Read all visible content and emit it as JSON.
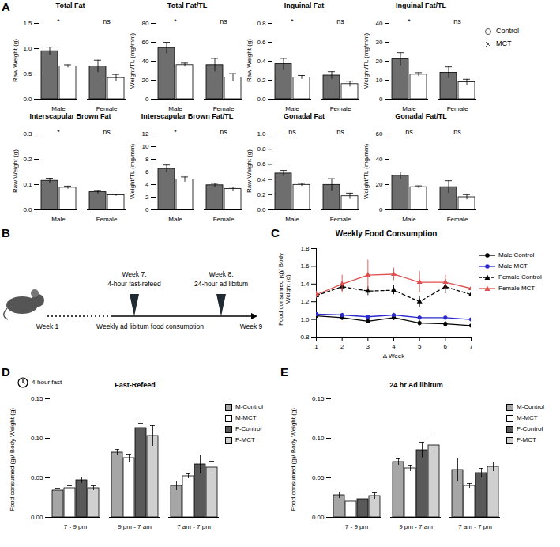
{
  "panel_labels": [
    "A",
    "B",
    "C",
    "D",
    "E"
  ],
  "chart_data": [
    {
      "type": "bar",
      "title": "Total Fat",
      "ylabel": "Raw Weight (g)",
      "categories": [
        "Male",
        "Female"
      ],
      "series": [
        {
          "name": "Control",
          "color": "#6e6e6e",
          "marker": "circle",
          "values": [
            0.95,
            0.65
          ],
          "errors": [
            0.08,
            0.12
          ]
        },
        {
          "name": "MCT",
          "color": "#ffffff",
          "marker": "x",
          "values": [
            0.65,
            0.42
          ],
          "errors": [
            0.03,
            0.07
          ]
        }
      ],
      "annotations": [
        "*",
        "ns"
      ],
      "ylim": [
        0,
        1.5
      ],
      "yticks": [
        {
          "value": 0,
          "label": "0.0"
        },
        0.5,
        {
          "value": 1,
          "label": "1.0"
        },
        1.5
      ],
      "legend": "right"
    },
    {
      "type": "bar",
      "title": "Total Fat/TL",
      "ylabel": "Weight/TL (mg/mm)",
      "categories": [
        "Male",
        "Female"
      ],
      "series": [
        {
          "name": "Control",
          "color": "#6e6e6e",
          "values": [
            54,
            36
          ],
          "errors": [
            6,
            7
          ]
        },
        {
          "name": "MCT",
          "color": "#ffffff",
          "values": [
            36,
            23
          ],
          "errors": [
            2,
            4
          ]
        }
      ],
      "annotations": [
        "*",
        "ns"
      ],
      "ylim": [
        0,
        80
      ],
      "yticks": [
        0,
        20,
        40,
        60,
        80
      ]
    },
    {
      "type": "bar",
      "title": "Inguinal Fat",
      "ylabel": "Raw Weight (g)",
      "categories": [
        "Male",
        "Female"
      ],
      "series": [
        {
          "name": "Control",
          "color": "#6e6e6e",
          "values": [
            0.37,
            0.25
          ],
          "errors": [
            0.06,
            0.04
          ]
        },
        {
          "name": "MCT",
          "color": "#ffffff",
          "values": [
            0.23,
            0.16
          ],
          "errors": [
            0.02,
            0.03
          ]
        }
      ],
      "annotations": [
        "*",
        "ns"
      ],
      "ylim": [
        0,
        0.8
      ],
      "yticks": [
        {
          "value": 0,
          "label": "0.0"
        },
        0.2,
        0.4,
        0.6,
        0.8
      ]
    },
    {
      "type": "bar",
      "title": "Inguinal Fat/TL",
      "ylabel": "Weight/TL (mg/mm)",
      "categories": [
        "Male",
        "Female"
      ],
      "series": [
        {
          "name": "Control",
          "color": "#6e6e6e",
          "values": [
            21,
            14
          ],
          "errors": [
            3.5,
            3
          ]
        },
        {
          "name": "MCT",
          "color": "#ffffff",
          "values": [
            13,
            9
          ],
          "errors": [
            1,
            1.5
          ]
        }
      ],
      "annotations": [
        "*",
        "ns"
      ],
      "ylim": [
        0,
        40
      ],
      "yticks": [
        0,
        10,
        20,
        30,
        40
      ]
    },
    {
      "type": "bar",
      "title": "Interscapular Brown Fat",
      "ylabel": "Raw Weight (g)",
      "categories": [
        "Male",
        "Female"
      ],
      "series": [
        {
          "name": "Control",
          "color": "#6e6e6e",
          "values": [
            0.115,
            0.07
          ],
          "errors": [
            0.01,
            0.007
          ]
        },
        {
          "name": "MCT",
          "color": "#ffffff",
          "values": [
            0.088,
            0.058
          ],
          "errors": [
            0.006,
            0.004
          ]
        }
      ],
      "annotations": [
        "*",
        "ns"
      ],
      "ylim": [
        0,
        0.3
      ],
      "yticks": [
        {
          "value": 0,
          "label": "0.0"
        },
        0.1,
        0.2,
        0.3
      ]
    },
    {
      "type": "bar",
      "title": "Interscapular Brown Fat/TL",
      "ylabel": "Weight/TL (mg/mm)",
      "categories": [
        "Male",
        "Female"
      ],
      "series": [
        {
          "name": "Control",
          "color": "#6e6e6e",
          "values": [
            6.5,
            3.9
          ],
          "errors": [
            0.6,
            0.3
          ]
        },
        {
          "name": "MCT",
          "color": "#ffffff",
          "values": [
            4.8,
            3.3
          ],
          "errors": [
            0.4,
            0.3
          ]
        }
      ],
      "annotations": [
        "*",
        "ns"
      ],
      "ylim": [
        0,
        12
      ],
      "yticks": [
        0,
        2,
        4,
        6,
        8,
        10,
        12
      ]
    },
    {
      "type": "bar",
      "title": "Gonadal Fat",
      "ylabel": "Raw Weight (g)",
      "categories": [
        "Male",
        "Female"
      ],
      "series": [
        {
          "name": "Control",
          "color": "#6e6e6e",
          "values": [
            0.48,
            0.33
          ],
          "errors": [
            0.04,
            0.08
          ]
        },
        {
          "name": "MCT",
          "color": "#ffffff",
          "values": [
            0.33,
            0.18
          ],
          "errors": [
            0.02,
            0.04
          ]
        }
      ],
      "annotations": [
        "ns",
        "ns"
      ],
      "ylim": [
        0,
        1
      ],
      "yticks": [
        {
          "value": 0,
          "label": "0.0"
        },
        0.2,
        0.4,
        0.6,
        0.8,
        {
          "value": 1,
          "label": "1.0"
        }
      ]
    },
    {
      "type": "bar",
      "title": "Gonadal Fat/TL",
      "ylabel": "Weight/TL (mg/mm)",
      "categories": [
        "Male",
        "Female"
      ],
      "series": [
        {
          "name": "Control",
          "color": "#6e6e6e",
          "values": [
            27,
            18
          ],
          "errors": [
            3,
            5
          ]
        },
        {
          "name": "MCT",
          "color": "#ffffff",
          "values": [
            18,
            10
          ],
          "errors": [
            1,
            2
          ]
        }
      ],
      "annotations": [
        "ns",
        "ns"
      ],
      "ylim": [
        0,
        60
      ],
      "yticks": [
        0,
        20,
        40,
        60
      ]
    },
    {
      "type": "line",
      "title": "Weekly Food Consumption",
      "xlabel": "Δ Week",
      "ylabel": "Food consumed (g)/ Body Weight (g)",
      "x": [
        1,
        2,
        3,
        4,
        5,
        6,
        7
      ],
      "xlim": [
        1,
        7
      ],
      "xticks": [
        1,
        2,
        3,
        4,
        5,
        6,
        7
      ],
      "ylim": [
        0.8,
        1.8
      ],
      "yticks": [
        0.8,
        {
          "value": 1,
          "label": "1.0"
        },
        1.2,
        1.4,
        1.6,
        1.8
      ],
      "legend": "right",
      "series": [
        {
          "name": "Male Control",
          "color": "#000000",
          "marker": "circle",
          "line_style": "solid",
          "values": [
            1.04,
            1.02,
            0.98,
            1.02,
            0.96,
            0.95,
            0.93
          ],
          "errors": [
            0.03,
            0.03,
            0.02,
            0.03,
            0.03,
            0.03,
            0.03
          ]
        },
        {
          "name": "Male MCT",
          "color": "#2a2ad0",
          "marker": "circle",
          "line_style": "solid",
          "values": [
            1.06,
            1.05,
            1.03,
            1.05,
            1.02,
            1.02,
            1.0
          ],
          "errors": [
            0.02,
            0.02,
            0.02,
            0.02,
            0.02,
            0.02,
            0.02
          ]
        },
        {
          "name": "Female Control",
          "color": "#000000",
          "marker": "triangle",
          "line_style": "dashed",
          "values": [
            1.27,
            1.37,
            1.32,
            1.33,
            1.2,
            1.37,
            1.28
          ],
          "errors": [
            0.05,
            0.05,
            0.05,
            0.05,
            0.06,
            0.08,
            0.06
          ]
        },
        {
          "name": "Female MCT",
          "color": "#e05050",
          "marker": "triangle",
          "line_style": "solid",
          "values": [
            1.28,
            1.4,
            1.5,
            1.51,
            1.42,
            1.42,
            1.35
          ],
          "errors": [
            0.04,
            0.1,
            0.17,
            0.07,
            0.12,
            0.08,
            0.12
          ]
        }
      ]
    },
    {
      "type": "bar",
      "title": "Fast-Refeed",
      "annotation": "4-hour fast",
      "ylabel": "Food consumed (g)/ Body Weight (g)",
      "categories": [
        "7 - 9 pm",
        "9 pm - 7 am",
        "7 am - 7 pm"
      ],
      "ylim": [
        0,
        0.15
      ],
      "yticks": [
        {
          "value": 0,
          "label": "0.00"
        },
        0.05,
        {
          "value": 0.1,
          "label": "0.10"
        },
        0.15
      ],
      "legend": "right",
      "series": [
        {
          "name": "M-Control",
          "color": "#a6a6a6",
          "values": [
            0.034,
            0.082,
            0.04
          ],
          "errors": [
            0.003,
            0.004,
            0.006
          ]
        },
        {
          "name": "M-MCT",
          "color": "#ffffff",
          "values": [
            0.037,
            0.075,
            0.052
          ],
          "errors": [
            0.003,
            0.005,
            0.003
          ]
        },
        {
          "name": "F-Control",
          "color": "#595959",
          "values": [
            0.047,
            0.113,
            0.067
          ],
          "errors": [
            0.004,
            0.006,
            0.012
          ]
        },
        {
          "name": "F-MCT",
          "color": "#d0d0d0",
          "values": [
            0.037,
            0.103,
            0.063
          ],
          "errors": [
            0.003,
            0.013,
            0.008
          ]
        }
      ]
    },
    {
      "type": "bar",
      "title": "24 hr Ad libitum",
      "ylabel": "Food consumed (g)/ Body Weight (g)",
      "categories": [
        "7 - 9 pm",
        "9 pm - 7 am",
        "7 am - 7 pm"
      ],
      "ylim": [
        0,
        0.15
      ],
      "yticks": [
        {
          "value": 0,
          "label": "0.00"
        },
        0.05,
        {
          "value": 0.1,
          "label": "0.10"
        },
        0.15
      ],
      "legend": "right",
      "series": [
        {
          "name": "M-Control",
          "color": "#a6a6a6",
          "values": [
            0.028,
            0.07,
            0.06
          ],
          "errors": [
            0.004,
            0.004,
            0.015
          ]
        },
        {
          "name": "M-MCT",
          "color": "#ffffff",
          "values": [
            0.02,
            0.062,
            0.04
          ],
          "errors": [
            0.002,
            0.004,
            0.003
          ]
        },
        {
          "name": "F-Control",
          "color": "#595959",
          "values": [
            0.023,
            0.085,
            0.056
          ],
          "errors": [
            0.004,
            0.01,
            0.006
          ]
        },
        {
          "name": "F-MCT",
          "color": "#d0d0d0",
          "values": [
            0.027,
            0.091,
            0.064
          ],
          "errors": [
            0.004,
            0.012,
            0.006
          ]
        }
      ]
    }
  ],
  "timeline": {
    "type": "timeline",
    "start": "Week 1",
    "end": "Week 9",
    "span_label": "Weekly ad libitum food consumption",
    "events": [
      {
        "label": "Week 7:",
        "detail": "4-hour fast-refeed"
      },
      {
        "label": "Week 8:",
        "detail": "24-hour ad libitum"
      }
    ]
  }
}
